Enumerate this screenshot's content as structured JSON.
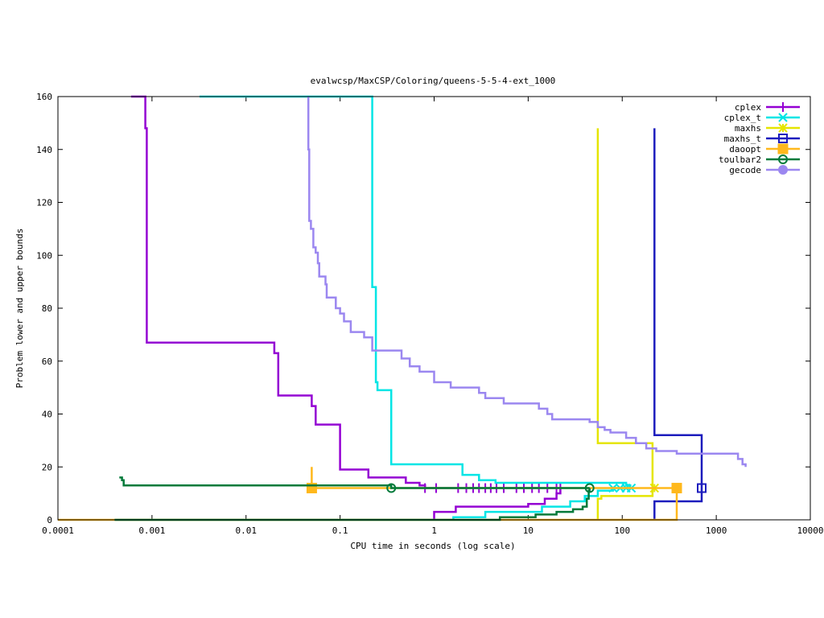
{
  "chart_data": {
    "type": "line",
    "title": "evalwcsp/MaxCSP/Coloring/queens-5-5-4-ext_1000",
    "xlabel": "CPU time in seconds (log scale)",
    "ylabel": "Problem lower and upper bounds",
    "xscale": "log",
    "xlim": [
      0.0001,
      10000
    ],
    "ylim": [
      0,
      160
    ],
    "xticks": [
      0.0001,
      0.001,
      0.01,
      0.1,
      1,
      10,
      100,
      1000,
      10000
    ],
    "xtick_labels": [
      "0.0001",
      "0.001",
      "0.01",
      "0.1",
      "1",
      "10",
      "100",
      "1000",
      "10000"
    ],
    "yticks": [
      0,
      20,
      40,
      60,
      80,
      100,
      120,
      140,
      160
    ],
    "ytick_labels": [
      "0",
      "20",
      "40",
      "60",
      "80",
      "100",
      "120",
      "140",
      "160"
    ],
    "grid": false,
    "legend_position": "top-right",
    "series": [
      {
        "name": "cplex",
        "color": "#9400d3",
        "marker": "plus",
        "upper": [
          [
            0.0006,
            160
          ],
          [
            0.00085,
            160
          ],
          [
            0.00085,
            148
          ],
          [
            0.00088,
            148
          ],
          [
            0.00088,
            67
          ],
          [
            0.02,
            67
          ],
          [
            0.02,
            63
          ],
          [
            0.022,
            63
          ],
          [
            0.022,
            47
          ],
          [
            0.05,
            47
          ],
          [
            0.05,
            43
          ],
          [
            0.055,
            43
          ],
          [
            0.055,
            36
          ],
          [
            0.1,
            36
          ],
          [
            0.1,
            19
          ],
          [
            0.2,
            19
          ],
          [
            0.2,
            16
          ],
          [
            0.5,
            16
          ],
          [
            0.5,
            14
          ],
          [
            0.7,
            14
          ],
          [
            0.7,
            13
          ],
          [
            0.8,
            13
          ],
          [
            0.8,
            12
          ],
          [
            22,
            12
          ]
        ],
        "lower": [
          [
            1.0,
            0
          ],
          [
            1.0,
            3
          ],
          [
            1.7,
            3
          ],
          [
            1.7,
            5
          ],
          [
            10,
            5
          ],
          [
            10,
            6
          ],
          [
            15,
            6
          ],
          [
            15,
            8
          ],
          [
            20,
            8
          ],
          [
            20,
            10
          ],
          [
            22,
            10
          ],
          [
            22,
            12
          ]
        ],
        "markers": [
          [
            0.8,
            12
          ],
          [
            1.05,
            12
          ],
          [
            1.8,
            12
          ],
          [
            2.2,
            12
          ],
          [
            2.6,
            12
          ],
          [
            3.0,
            12
          ],
          [
            3.5,
            12
          ],
          [
            4.0,
            12
          ],
          [
            4.6,
            12
          ],
          [
            5.5,
            12
          ],
          [
            7.5,
            12
          ],
          [
            9,
            12
          ],
          [
            11,
            12
          ],
          [
            13,
            12
          ],
          [
            16,
            12
          ],
          [
            20,
            12
          ],
          [
            22,
            12
          ]
        ]
      },
      {
        "name": "cplex_t",
        "color": "#00e5e5",
        "marker": "cross",
        "upper": [
          [
            0.0032,
            160
          ],
          [
            0.22,
            160
          ],
          [
            0.22,
            88
          ],
          [
            0.24,
            88
          ],
          [
            0.24,
            52
          ],
          [
            0.25,
            52
          ],
          [
            0.25,
            49
          ],
          [
            0.35,
            49
          ],
          [
            0.35,
            21
          ],
          [
            2.0,
            21
          ],
          [
            2.0,
            17
          ],
          [
            3.0,
            17
          ],
          [
            3.0,
            15
          ],
          [
            4.5,
            15
          ],
          [
            4.5,
            14
          ],
          [
            110,
            14
          ],
          [
            110,
            13
          ],
          [
            125,
            13
          ]
        ],
        "lower": [
          [
            1.6,
            0
          ],
          [
            1.6,
            1
          ],
          [
            3.5,
            1
          ],
          [
            3.5,
            3
          ],
          [
            14,
            3
          ],
          [
            14,
            5
          ],
          [
            28,
            5
          ],
          [
            28,
            7
          ],
          [
            40,
            7
          ],
          [
            40,
            9
          ],
          [
            55,
            9
          ],
          [
            55,
            11
          ],
          [
            80,
            11
          ],
          [
            80,
            12
          ],
          [
            125,
            12
          ]
        ],
        "markers": [
          [
            80,
            12
          ],
          [
            95,
            12
          ],
          [
            110,
            12
          ],
          [
            125,
            12
          ]
        ]
      },
      {
        "name": "maxhs",
        "color": "#e5e500",
        "marker": "star",
        "upper": [
          [
            55,
            148
          ],
          [
            55,
            29
          ],
          [
            210,
            29
          ],
          [
            210,
            12
          ],
          [
            220,
            12
          ]
        ],
        "lower": [
          [
            55,
            0
          ],
          [
            55,
            8
          ],
          [
            60,
            8
          ],
          [
            60,
            9
          ],
          [
            210,
            9
          ],
          [
            210,
            12
          ],
          [
            220,
            12
          ]
        ],
        "markers": [
          [
            220,
            12
          ]
        ]
      },
      {
        "name": "maxhs_t",
        "color": "#1c1cbd",
        "marker": "square",
        "upper": [
          [
            220,
            148
          ],
          [
            220,
            32
          ],
          [
            700,
            32
          ],
          [
            700,
            12
          ]
        ],
        "lower": [
          [
            220,
            0
          ],
          [
            220,
            7
          ],
          [
            700,
            7
          ],
          [
            700,
            12
          ]
        ],
        "markers": [
          [
            700,
            12
          ]
        ]
      },
      {
        "name": "daoopt",
        "color": "#ffb81c",
        "marker": "filled-square",
        "upper": [
          [
            0.05,
            20
          ],
          [
            0.05,
            12
          ],
          [
            380,
            12
          ]
        ],
        "lower": [
          [
            0.0001,
            0
          ],
          [
            380,
            0
          ],
          [
            380,
            12
          ]
        ],
        "markers": [
          [
            0.05,
            12
          ],
          [
            380,
            12
          ]
        ]
      },
      {
        "name": "toulbar2",
        "color": "#007a3a",
        "marker": "circle",
        "upper": [
          [
            0.00045,
            16
          ],
          [
            0.00048,
            16
          ],
          [
            0.00048,
            15
          ],
          [
            0.0005,
            15
          ],
          [
            0.0005,
            13
          ],
          [
            0.35,
            13
          ],
          [
            0.35,
            12
          ],
          [
            45,
            12
          ]
        ],
        "lower": [
          [
            0.0004,
            0
          ],
          [
            5,
            0
          ],
          [
            5,
            1
          ],
          [
            12,
            1
          ],
          [
            12,
            2
          ],
          [
            20,
            2
          ],
          [
            20,
            3
          ],
          [
            30,
            3
          ],
          [
            30,
            4
          ],
          [
            38,
            4
          ],
          [
            38,
            5
          ],
          [
            42,
            5
          ],
          [
            42,
            8
          ],
          [
            44,
            8
          ],
          [
            44,
            11
          ],
          [
            45,
            11
          ],
          [
            45,
            12
          ]
        ],
        "markers": [
          [
            0.35,
            12
          ],
          [
            45,
            12
          ]
        ]
      },
      {
        "name": "gecode",
        "color": "#9b87f0",
        "marker": "filled-circle",
        "upper": [
          [
            0.046,
            160
          ],
          [
            0.046,
            140
          ],
          [
            0.047,
            140
          ],
          [
            0.047,
            113
          ],
          [
            0.049,
            113
          ],
          [
            0.049,
            110
          ],
          [
            0.052,
            110
          ],
          [
            0.052,
            103
          ],
          [
            0.055,
            103
          ],
          [
            0.055,
            101
          ],
          [
            0.058,
            101
          ],
          [
            0.058,
            97
          ],
          [
            0.06,
            97
          ],
          [
            0.06,
            92
          ],
          [
            0.07,
            92
          ],
          [
            0.07,
            89
          ],
          [
            0.072,
            89
          ],
          [
            0.072,
            84
          ],
          [
            0.09,
            84
          ],
          [
            0.09,
            80
          ],
          [
            0.1,
            80
          ],
          [
            0.1,
            78
          ],
          [
            0.11,
            78
          ],
          [
            0.11,
            75
          ],
          [
            0.13,
            75
          ],
          [
            0.13,
            71
          ],
          [
            0.18,
            71
          ],
          [
            0.18,
            69
          ],
          [
            0.22,
            69
          ],
          [
            0.22,
            64
          ],
          [
            0.45,
            64
          ],
          [
            0.45,
            61
          ],
          [
            0.55,
            61
          ],
          [
            0.55,
            58
          ],
          [
            0.7,
            58
          ],
          [
            0.7,
            56
          ],
          [
            1.0,
            56
          ],
          [
            1.0,
            52
          ],
          [
            1.5,
            52
          ],
          [
            1.5,
            50
          ],
          [
            3.0,
            50
          ],
          [
            3.0,
            48
          ],
          [
            3.5,
            48
          ],
          [
            3.5,
            46
          ],
          [
            5.5,
            46
          ],
          [
            5.5,
            44
          ],
          [
            13,
            44
          ],
          [
            13,
            42
          ],
          [
            16,
            42
          ],
          [
            16,
            40
          ],
          [
            18,
            40
          ],
          [
            18,
            38
          ],
          [
            45,
            38
          ],
          [
            45,
            37
          ],
          [
            55,
            37
          ],
          [
            55,
            35
          ],
          [
            65,
            35
          ],
          [
            65,
            34
          ],
          [
            75,
            34
          ],
          [
            75,
            33
          ],
          [
            110,
            33
          ],
          [
            110,
            31
          ],
          [
            140,
            31
          ],
          [
            140,
            29
          ],
          [
            180,
            29
          ],
          [
            180,
            27
          ],
          [
            230,
            27
          ],
          [
            230,
            26
          ],
          [
            380,
            26
          ],
          [
            380,
            25
          ],
          [
            1700,
            25
          ],
          [
            1700,
            23
          ],
          [
            1900,
            23
          ],
          [
            1900,
            21
          ],
          [
            2050,
            21
          ],
          [
            2050,
            20
          ]
        ],
        "lower": [],
        "markers": []
      }
    ]
  }
}
